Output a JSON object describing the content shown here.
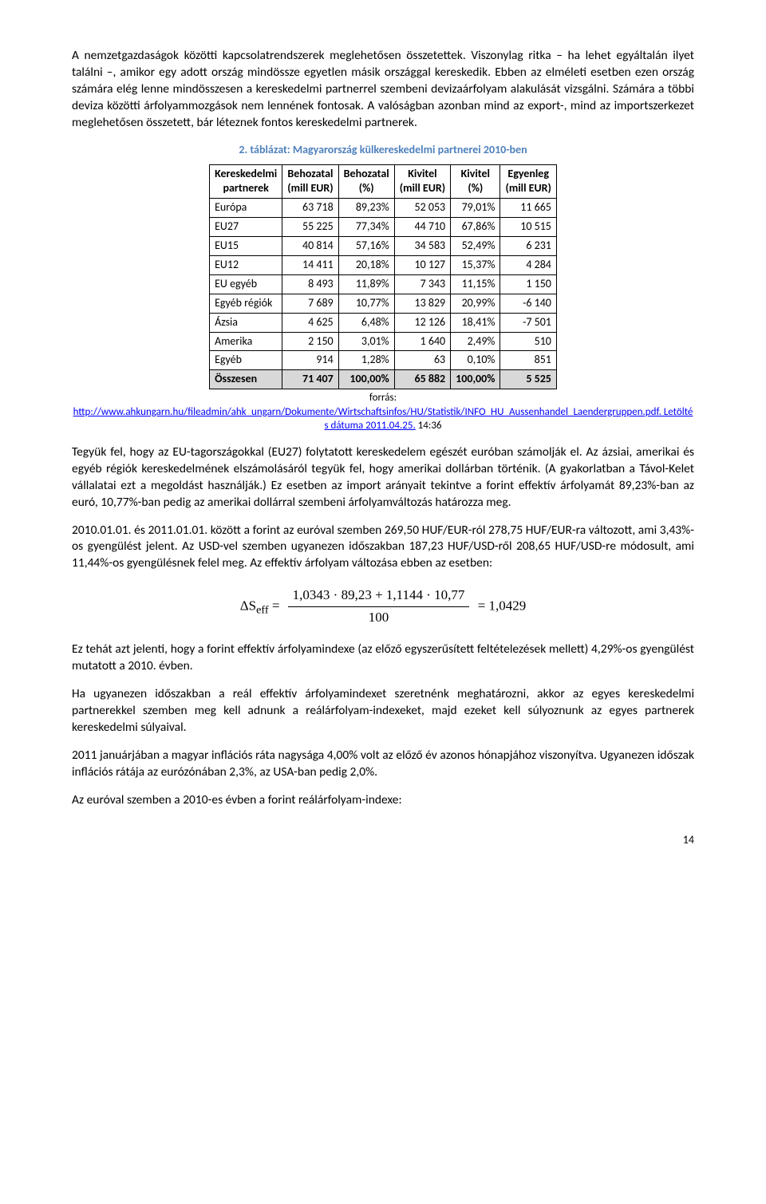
{
  "paragraph1": "A nemzetgazdaságok közötti kapcsolatrendszerek meglehetősen összetettek. Viszonylag ritka – ha lehet egyáltalán ilyet találni –, amikor egy adott ország mindössze egyetlen másik országgal kereskedik. Ebben az elméleti esetben ezen ország számára elég lenne mindösszesen a kereskedelmi partnerrel szembeni devizaárfolyam alakulását vizsgálni. Számára a többi deviza közötti árfolyammozgások nem lennének fontosak. A valóságban azonban mind az export-, mind az importszerkezet meglehetősen összetett, bár léteznek fontos kereskedelmi partnerek.",
  "table_caption": "2. táblázat: Magyarország külkereskedelmi partnerei 2010-ben",
  "table": {
    "columns": [
      {
        "line1": "Kereskedelmi",
        "line2": "partnerek"
      },
      {
        "line1": "Behozatal",
        "line2": "(mill EUR)"
      },
      {
        "line1": "Behozatal",
        "line2": "(%)"
      },
      {
        "line1": "Kivitel",
        "line2": "(mill EUR)"
      },
      {
        "line1": "Kivitel",
        "line2": "(%)"
      },
      {
        "line1": "Egyenleg",
        "line2": "(mill EUR)"
      }
    ],
    "rows": [
      [
        "Európa",
        "63 718",
        "89,23%",
        "52 053",
        "79,01%",
        "11 665"
      ],
      [
        "EU27",
        "55 225",
        "77,34%",
        "44 710",
        "67,86%",
        "10 515"
      ],
      [
        "EU15",
        "40 814",
        "57,16%",
        "34 583",
        "52,49%",
        "6 231"
      ],
      [
        "EU12",
        "14 411",
        "20,18%",
        "10 127",
        "15,37%",
        "4 284"
      ],
      [
        "EU egyéb",
        "8 493",
        "11,89%",
        "7 343",
        "11,15%",
        "1 150"
      ],
      [
        "Egyéb régiók",
        "7 689",
        "10,77%",
        "13 829",
        "20,99%",
        "-6 140"
      ],
      [
        "Ázsia",
        "4 625",
        "6,48%",
        "12 126",
        "18,41%",
        "-7 501"
      ],
      [
        "Amerika",
        "2 150",
        "3,01%",
        "1 640",
        "2,49%",
        "510"
      ],
      [
        "Egyéb",
        "914",
        "1,28%",
        "63",
        "0,10%",
        "851"
      ]
    ],
    "total": [
      "Összesen",
      "71 407",
      "100,00%",
      "65 882",
      "100,00%",
      "5 525"
    ]
  },
  "source_label": "forrás:",
  "source_url_text": "http://www.ahkungarn.hu/fileadmin/ahk_ungarn/Dokumente/Wirtschaftsinfos/HU/Statistik/INFO_HU_Aussenhandel_Laendergruppen.pdf. Letöltés dátuma 2011.04.25.",
  "source_time": " 14:36",
  "paragraph2": "Tegyük fel, hogy az EU-tagországokkal (EU27) folytatott kereskedelem egészét euróban számolják el. Az ázsiai, amerikai és egyéb régiók kereskedelmének elszámolásáról tegyük fel, hogy amerikai dollárban történik. (A gyakorlatban a Távol-Kelet vállalatai ezt a megoldást használják.) Ez esetben az import arányait tekintve a forint effektív árfolyamát 89,23%-ban az euró, 10,77%-ban pedig az amerikai dollárral szembeni árfolyamváltozás határozza meg.",
  "paragraph3": "2010.01.01. és 2011.01.01. között a forint az euróval szemben 269,50 HUF/EUR-ról 278,75 HUF/EUR-ra változott, ami 3,43%-os gyengülést jelent. Az USD-vel szemben ugyanezen időszakban 187,23 HUF/USD-ről 208,65 HUF/USD-re módosult, ami 11,44%-os gyengülésnek felel meg. Az effektív árfolyam változása ebben az esetben:",
  "formula": {
    "lhs": "ΔS",
    "sub": "eff",
    "numerator": "1,0343 · 89,23 + 1,1144 · 10,77",
    "denominator": "100",
    "rhs": "= 1,0429"
  },
  "paragraph4": "Ez tehát azt jelenti, hogy a forint effektív árfolyamindexe (az előző egyszerűsített feltételezések mellett) 4,29%-os gyengülést mutatott a 2010. évben.",
  "paragraph5": "Ha ugyanezen időszakban a reál effektív árfolyamindexet szeretnénk meghatározni, akkor az egyes kereskedelmi partnerekkel szemben meg kell adnunk a reálárfolyam-indexeket, majd ezeket kell súlyoznunk az egyes partnerek kereskedelmi súlyaival.",
  "paragraph6": "2011 januárjában a magyar inflációs ráta nagysága 4,00% volt az előző év azonos hónapjához viszonyítva. Ugyanezen időszak inflációs rátája az eurózónában 2,3%, az USA-ban pedig 2,0%.",
  "paragraph7": "Az euróval szemben a 2010-es évben a forint reálárfolyam-indexe:",
  "page_number": "14"
}
